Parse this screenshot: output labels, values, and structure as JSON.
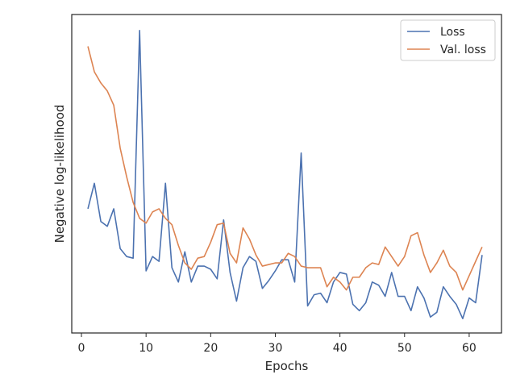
{
  "chart_data": {
    "type": "line",
    "xlabel": "Epochs",
    "ylabel": "Negative log-likelihood",
    "xlim": [
      -1.5,
      65
    ],
    "ylim": [
      0,
      100
    ],
    "xticks": [
      0,
      10,
      20,
      30,
      40,
      50,
      60
    ],
    "yticks_visible": false,
    "grid": false,
    "legend": "top-right",
    "x": [
      1,
      2,
      3,
      4,
      5,
      6,
      7,
      8,
      9,
      10,
      11,
      12,
      13,
      14,
      15,
      16,
      17,
      18,
      19,
      20,
      21,
      22,
      23,
      24,
      25,
      26,
      27,
      28,
      29,
      30,
      31,
      32,
      33,
      34,
      35,
      36,
      37,
      38,
      39,
      40,
      41,
      42,
      43,
      44,
      45,
      46,
      47,
      48,
      49,
      50,
      51,
      52,
      53,
      54,
      55,
      56,
      57,
      58,
      59,
      60,
      61,
      62
    ],
    "series": [
      {
        "name": "Loss",
        "color": "#4c72b0",
        "values": [
          39,
          47,
          35,
          33.5,
          39,
          26.5,
          24,
          23.5,
          95,
          19.5,
          24,
          22.5,
          47,
          20.5,
          16,
          25.5,
          16,
          21,
          21,
          20,
          17,
          35.5,
          19,
          10,
          20.5,
          24,
          22.5,
          14,
          16.5,
          19.5,
          23,
          23,
          16,
          56.5,
          8.5,
          12,
          12.5,
          9.5,
          16,
          19,
          18.5,
          9,
          7,
          9.5,
          16,
          15,
          11.5,
          19,
          11.5,
          11.5,
          7,
          14.5,
          11,
          5,
          6.5,
          14.5,
          11.5,
          9,
          4.5,
          11,
          9.5,
          24.5
        ]
      },
      {
        "name": "Val. loss",
        "color": "#dd8452",
        "values": [
          90,
          82,
          78.5,
          76,
          71.5,
          58,
          49,
          41,
          36,
          34.5,
          38,
          39,
          36,
          34,
          27.5,
          22,
          20,
          23.5,
          24,
          28.5,
          34,
          34.5,
          25,
          22,
          33,
          29.5,
          24.5,
          21,
          21.5,
          22,
          22,
          25,
          24,
          21,
          20.5,
          20.5,
          20.5,
          14.5,
          17.5,
          16,
          13.5,
          17.5,
          17.5,
          20.5,
          22,
          21.5,
          27,
          24,
          21,
          24,
          30.5,
          31.5,
          24.5,
          19,
          22,
          26,
          21,
          19,
          13.5,
          18,
          22.5,
          27
        ]
      }
    ]
  }
}
